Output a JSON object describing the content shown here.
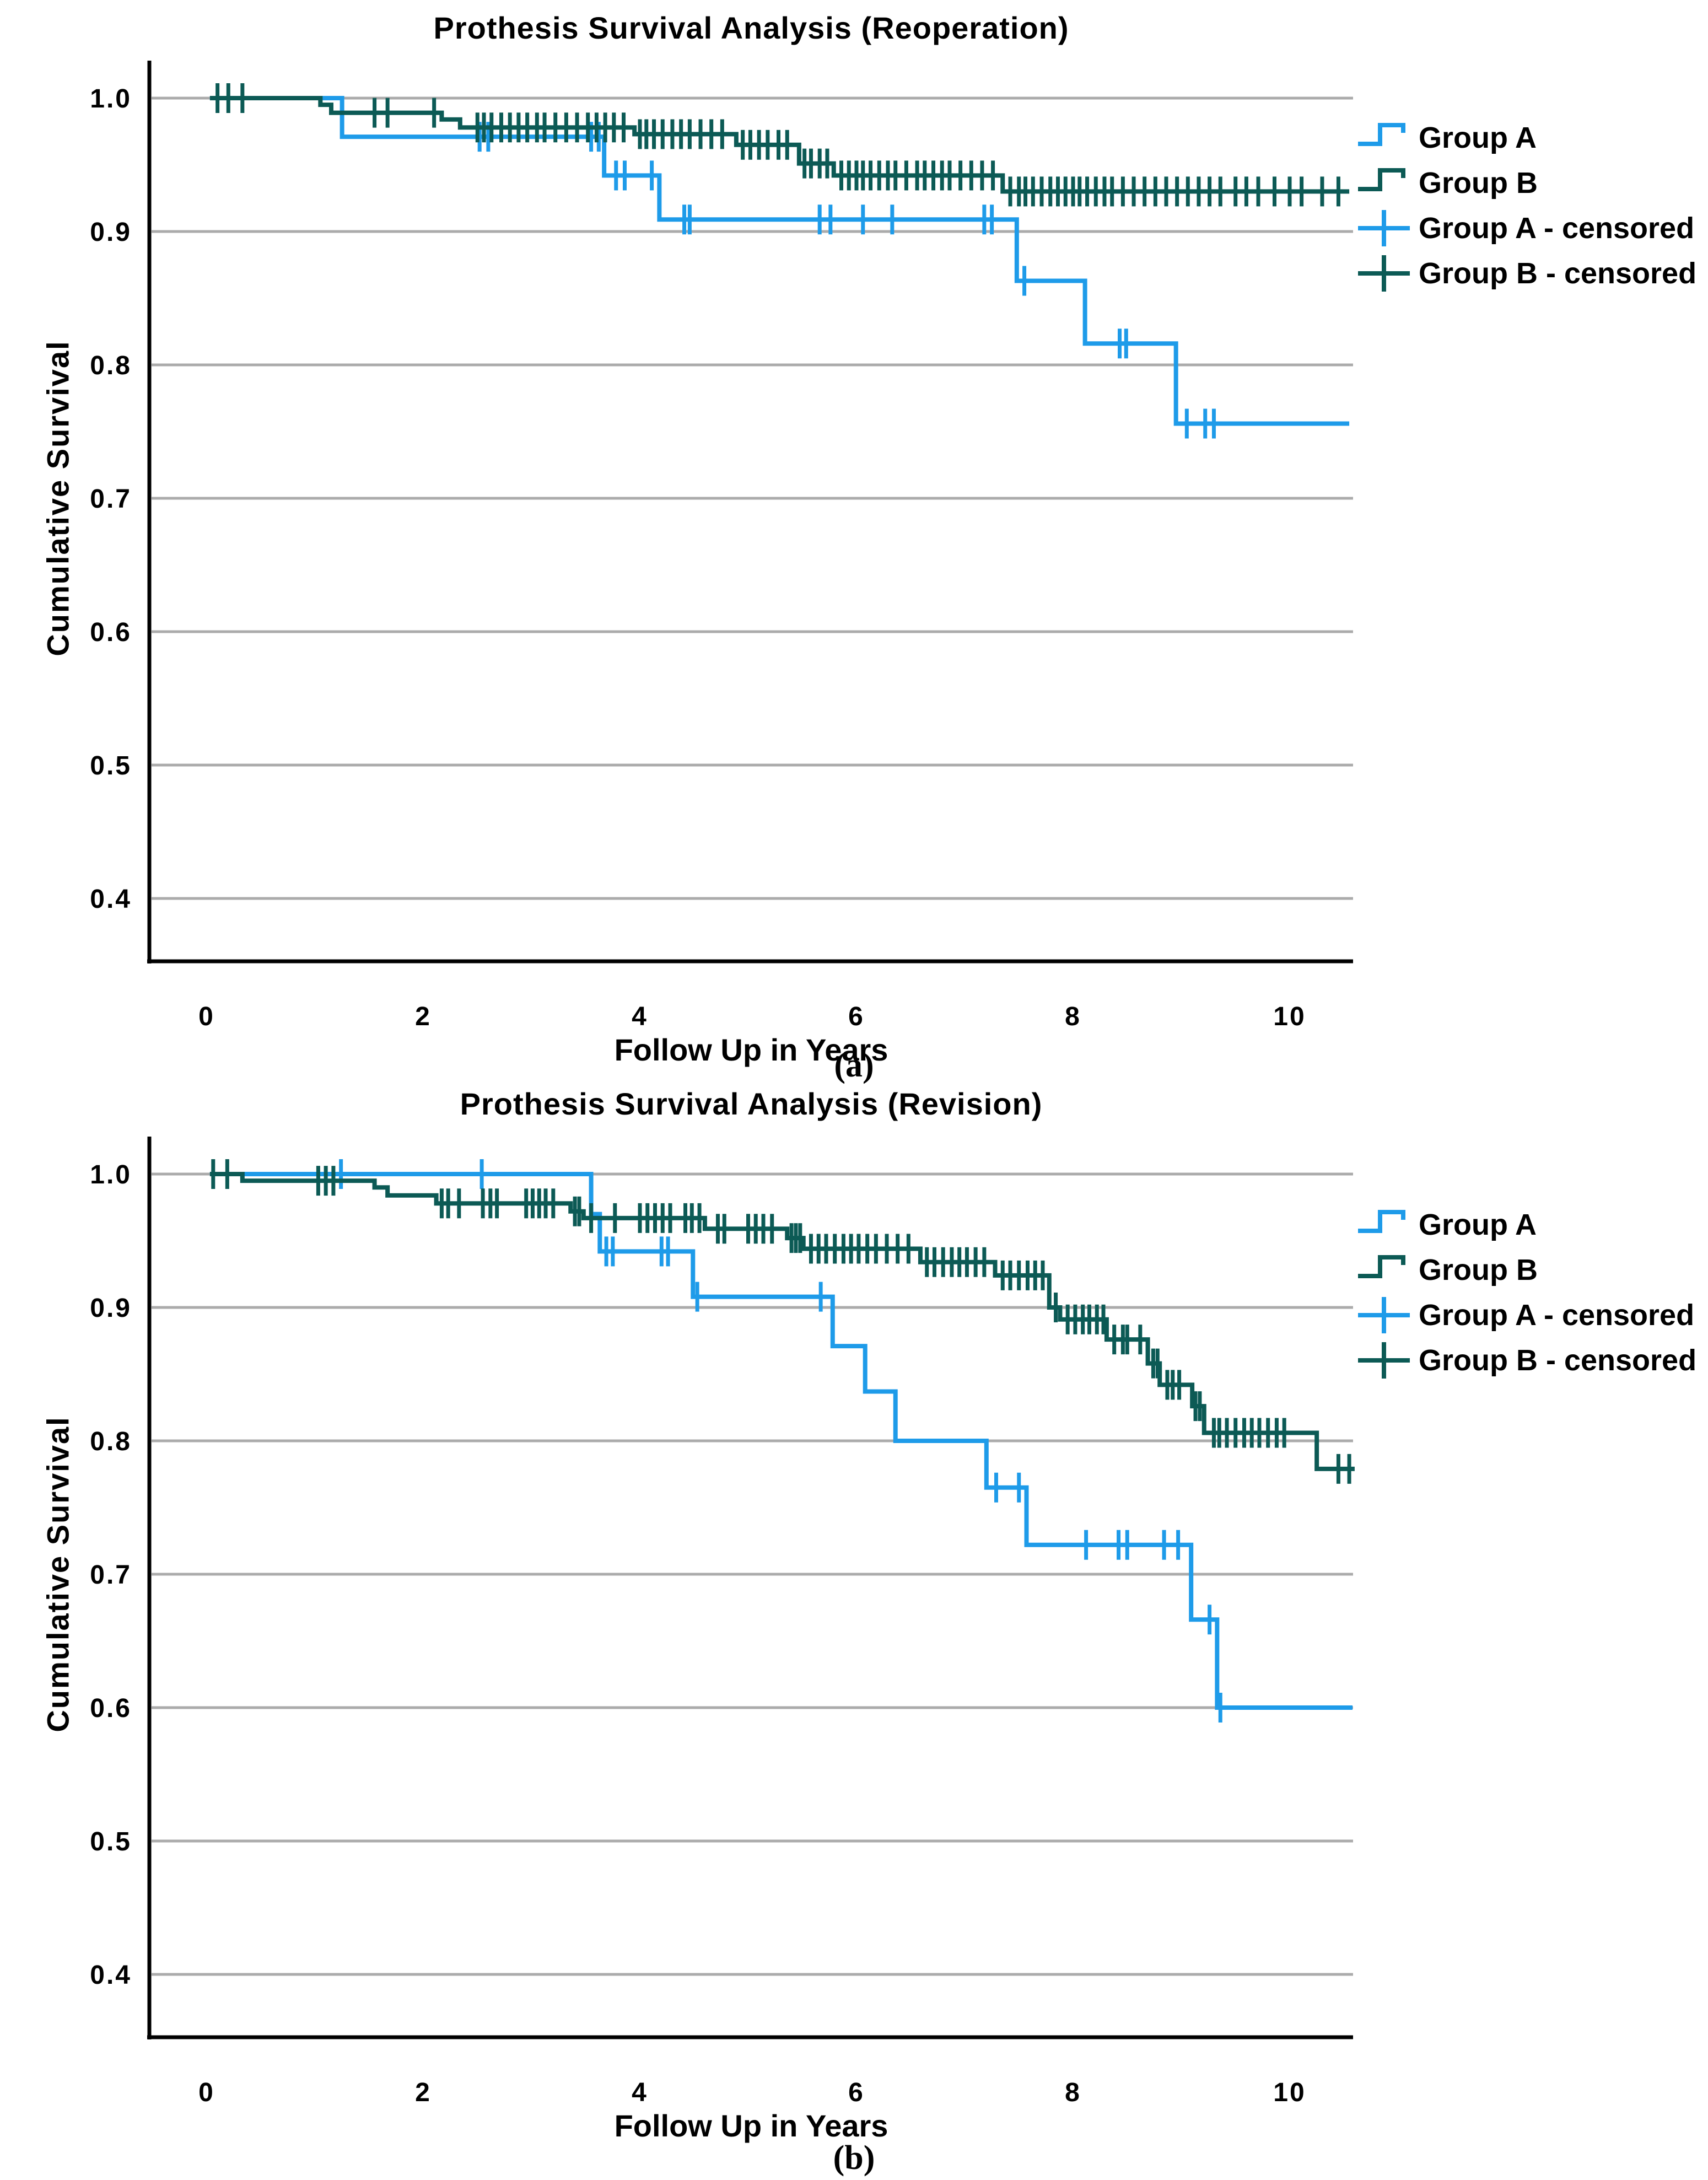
{
  "figure_name": "Prothesis Survival Analysis figure with two Kaplan-Meier panels",
  "colors": {
    "group_a": "#1E9BE9",
    "group_b": "#0C5A55",
    "gridline": "#ABABAB",
    "axis": "#000000",
    "text": "#000000"
  },
  "legend": [
    {
      "label": "Group A",
      "type": "step-line",
      "series": "group_a"
    },
    {
      "label": "Group B",
      "type": "step-line",
      "series": "group_b"
    },
    {
      "label": "Group A - censored",
      "type": "censor-plus",
      "series": "group_a"
    },
    {
      "label": "Group B - censored",
      "type": "censor-plus",
      "series": "group_b"
    }
  ],
  "chart_data": [
    {
      "type": "line",
      "subtype": "kaplan-meier-step",
      "title": "Prothesis Survival Analysis (Reoperation)",
      "panel_label": "(a)",
      "xlabel": "Follow Up in Years",
      "ylabel": "Cumulative Survival",
      "xlim": [
        -0.55,
        10.7
      ],
      "ylim": [
        0.35,
        1.03
      ],
      "x_ticks": [
        0,
        2,
        4,
        6,
        8,
        10
      ],
      "y_ticks": [
        "1.0",
        "0.9",
        "0.8",
        "0.7",
        "0.6",
        "0.5",
        "0.4"
      ],
      "grid": "horizontal",
      "legend_position": "right-top",
      "series": [
        {
          "name": "Group A",
          "color_ref": "group_a",
          "start": 1.0,
          "steps": [
            [
              1.25,
              0.971
            ],
            [
              3.67,
              0.942
            ],
            [
              4.18,
              0.909
            ],
            [
              7.48,
              0.863
            ],
            [
              8.11,
              0.816
            ],
            [
              8.95,
              0.756
            ]
          ],
          "end_year": 10.55,
          "censor_years": [
            2.52,
            2.6,
            3.55,
            3.62,
            3.78,
            3.86,
            4.11,
            4.41,
            4.46,
            5.66,
            5.76,
            6.06,
            6.33,
            7.18,
            7.25,
            7.55,
            8.43,
            8.49,
            9.05,
            9.22,
            9.3
          ]
        },
        {
          "name": "Group B",
          "color_ref": "group_b",
          "start": 1.0,
          "steps": [
            [
              1.05,
              0.995
            ],
            [
              1.15,
              0.989
            ],
            [
              2.17,
              0.984
            ],
            [
              2.34,
              0.978
            ],
            [
              3.95,
              0.973
            ],
            [
              4.89,
              0.965
            ],
            [
              5.47,
              0.951
            ],
            [
              5.79,
              0.942
            ],
            [
              7.35,
              0.93
            ]
          ],
          "end_year": 10.55,
          "censor_years": [
            0.1,
            0.2,
            0.33,
            1.55,
            1.67,
            2.1,
            2.5,
            2.56,
            2.63,
            2.72,
            2.8,
            2.88,
            2.96,
            3.05,
            3.12,
            3.22,
            3.32,
            3.42,
            3.52,
            3.6,
            3.68,
            3.76,
            3.85,
            4.0,
            4.06,
            4.13,
            4.21,
            4.3,
            4.38,
            4.46,
            4.56,
            4.66,
            4.76,
            4.95,
            5.02,
            5.1,
            5.18,
            5.28,
            5.36,
            5.52,
            5.58,
            5.66,
            5.73,
            5.86,
            5.93,
            6.0,
            6.06,
            6.13,
            6.21,
            6.29,
            6.36,
            6.46,
            6.56,
            6.63,
            6.71,
            6.79,
            6.86,
            6.96,
            7.06,
            7.16,
            7.26,
            7.42,
            7.5,
            7.56,
            7.63,
            7.71,
            7.79,
            7.86,
            7.93,
            8.0,
            8.06,
            8.13,
            8.21,
            8.29,
            8.36,
            8.46,
            8.56,
            8.66,
            8.76,
            8.86,
            8.96,
            9.06,
            9.16,
            9.26,
            9.36,
            9.5,
            9.6,
            9.71,
            9.86,
            10.0,
            10.11,
            10.3,
            10.45
          ]
        }
      ]
    },
    {
      "type": "line",
      "subtype": "kaplan-meier-step",
      "title": "Prothesis Survival Analysis (Revision)",
      "panel_label": "(b)",
      "xlabel": "Follow Up in Years",
      "ylabel": "Cumulative Survival",
      "xlim": [
        -0.55,
        10.7
      ],
      "ylim": [
        0.35,
        1.03
      ],
      "x_ticks": [
        0,
        2,
        4,
        6,
        8,
        10
      ],
      "y_ticks": [
        "1.0",
        "0.9",
        "0.8",
        "0.7",
        "0.6",
        "0.5",
        "0.4"
      ],
      "grid": "horizontal",
      "legend_position": "right-top",
      "series": [
        {
          "name": "Group A",
          "color_ref": "group_a",
          "start": 1.0,
          "steps": [
            [
              3.55,
              0.97
            ],
            [
              3.63,
              0.942
            ],
            [
              4.49,
              0.908
            ],
            [
              5.78,
              0.871
            ],
            [
              6.08,
              0.837
            ],
            [
              6.36,
              0.8
            ],
            [
              7.2,
              0.765
            ],
            [
              7.57,
              0.722
            ],
            [
              9.09,
              0.666
            ],
            [
              9.33,
              0.6
            ]
          ],
          "end_year": 10.58,
          "censor_years": [
            1.24,
            2.54,
            3.69,
            3.75,
            4.2,
            4.26,
            4.53,
            5.67,
            7.29,
            7.5,
            8.12,
            8.42,
            8.5,
            8.84,
            8.97,
            9.26,
            9.36
          ]
        },
        {
          "name": "Group B",
          "color_ref": "group_b",
          "start": 1.0,
          "steps": [
            [
              0.33,
              0.995
            ],
            [
              1.55,
              0.99
            ],
            [
              1.67,
              0.984
            ],
            [
              2.12,
              0.978
            ],
            [
              3.36,
              0.972
            ],
            [
              3.48,
              0.967
            ],
            [
              4.6,
              0.959
            ],
            [
              5.36,
              0.952
            ],
            [
              5.51,
              0.944
            ],
            [
              6.59,
              0.934
            ],
            [
              7.28,
              0.924
            ],
            [
              7.78,
              0.9
            ],
            [
              7.88,
              0.891
            ],
            [
              8.31,
              0.876
            ],
            [
              8.69,
              0.858
            ],
            [
              8.8,
              0.842
            ],
            [
              9.1,
              0.826
            ],
            [
              9.21,
              0.806
            ],
            [
              10.25,
              0.779
            ]
          ],
          "end_year": 10.6,
          "censor_years": [
            0.06,
            0.19,
            1.03,
            1.1,
            1.17,
            2.17,
            2.23,
            2.33,
            2.55,
            2.62,
            2.68,
            2.95,
            3.01,
            3.07,
            3.13,
            3.2,
            3.4,
            3.44,
            3.55,
            3.77,
            4.0,
            4.07,
            4.14,
            4.21,
            4.28,
            4.42,
            4.48,
            4.55,
            4.72,
            4.78,
            5.0,
            5.07,
            5.14,
            5.22,
            5.4,
            5.44,
            5.48,
            5.58,
            5.65,
            5.72,
            5.8,
            5.88,
            5.95,
            6.02,
            6.1,
            6.18,
            6.28,
            6.38,
            6.48,
            6.65,
            6.72,
            6.8,
            6.88,
            6.95,
            7.02,
            7.1,
            7.18,
            7.35,
            7.42,
            7.5,
            7.58,
            7.65,
            7.72,
            7.84,
            7.95,
            8.02,
            8.09,
            8.15,
            8.22,
            8.28,
            8.38,
            8.46,
            8.5,
            8.62,
            8.74,
            8.78,
            8.87,
            8.92,
            8.98,
            9.13,
            9.17,
            9.3,
            9.35,
            9.42,
            9.5,
            9.58,
            9.65,
            9.72,
            9.8,
            9.88,
            9.95,
            10.45,
            10.55
          ]
        }
      ]
    }
  ]
}
